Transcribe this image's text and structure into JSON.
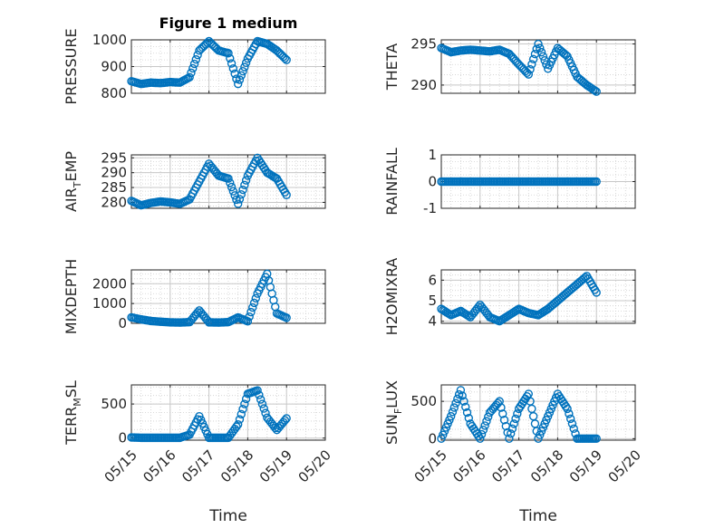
{
  "figure": {
    "title": "Figure 1 medium",
    "marker_color": "#0072BD"
  },
  "chart_data": [
    {
      "type": "scatter",
      "ylabel": "PRESSURE",
      "ylim": [
        800,
        1000
      ],
      "yticks": [
        "800",
        "900",
        "1000"
      ],
      "x": [
        "05/15",
        "05/15 06:00",
        "05/15 12:00",
        "05/15 18:00",
        "05/16",
        "05/16 06:00",
        "05/16 12:00",
        "05/16 18:00",
        "05/17",
        "05/17 06:00",
        "05/17 12:00",
        "05/17 18:00",
        "05/18",
        "05/18 06:00",
        "05/18 12:00",
        "05/18 18:00",
        "05/19"
      ],
      "y": [
        845,
        835,
        840,
        838,
        842,
        840,
        860,
        960,
        995,
        960,
        950,
        835,
        930,
        995,
        985,
        960,
        925
      ],
      "xlim": [
        "05/15",
        "05/20"
      ],
      "xticks": [
        "05/15",
        "05/16",
        "05/17",
        "05/18",
        "05/19",
        "05/20"
      ],
      "xlabel": "",
      "show_xticks": false,
      "title": "Figure 1 medium"
    },
    {
      "type": "scatter",
      "ylabel": "THETA",
      "ylim": [
        289,
        295.5
      ],
      "yticks": [
        "290",
        "295"
      ],
      "x": [
        "05/15",
        "05/15 06:00",
        "05/15 12:00",
        "05/15 18:00",
        "05/16",
        "05/16 06:00",
        "05/16 12:00",
        "05/16 18:00",
        "05/17",
        "05/17 06:00",
        "05/17 12:00",
        "05/17 18:00",
        "05/18",
        "05/18 06:00",
        "05/18 12:00",
        "05/18 18:00",
        "05/19"
      ],
      "y": [
        294.5,
        294.0,
        294.2,
        294.3,
        294.2,
        294.1,
        294.3,
        293.8,
        292.5,
        291.3,
        295.0,
        292.0,
        294.5,
        293.5,
        291.0,
        290.0,
        289.2
      ],
      "xlim": [
        "05/15",
        "05/20"
      ],
      "xticks": [
        "05/15",
        "05/16",
        "05/17",
        "05/18",
        "05/19",
        "05/20"
      ],
      "xlabel": "",
      "show_xticks": false
    },
    {
      "type": "scatter",
      "ylabel": "AIR_TEMP",
      "ylabel_main": "AIR",
      "ylabel_sub": "T",
      "ylabel_rest": "EMP",
      "ylim": [
        278,
        296
      ],
      "yticks": [
        "280",
        "285",
        "290",
        "295"
      ],
      "x": [
        "05/15",
        "05/15 06:00",
        "05/15 12:00",
        "05/15 18:00",
        "05/16",
        "05/16 06:00",
        "05/16 12:00",
        "05/16 18:00",
        "05/17",
        "05/17 06:00",
        "05/17 12:00",
        "05/17 18:00",
        "05/18",
        "05/18 06:00",
        "05/18 12:00",
        "05/18 18:00",
        "05/19"
      ],
      "y": [
        280.5,
        279.0,
        279.8,
        280.3,
        280.0,
        279.5,
        281.0,
        287.0,
        293.0,
        289.0,
        288.0,
        279.5,
        289.0,
        295.0,
        290.0,
        288.0,
        282.5
      ],
      "xlim": [
        "05/15",
        "05/20"
      ],
      "xticks": [
        "05/15",
        "05/16",
        "05/17",
        "05/18",
        "05/19",
        "05/20"
      ],
      "xlabel": "",
      "show_xticks": false
    },
    {
      "type": "scatter",
      "ylabel": "RAINFALL",
      "ylim": [
        -1,
        1
      ],
      "yticks": [
        "-1",
        "0",
        "1"
      ],
      "x": [
        "05/15",
        "05/15 06:00",
        "05/15 12:00",
        "05/15 18:00",
        "05/16",
        "05/16 06:00",
        "05/16 12:00",
        "05/16 18:00",
        "05/17",
        "05/17 06:00",
        "05/17 12:00",
        "05/17 18:00",
        "05/18",
        "05/18 06:00",
        "05/18 12:00",
        "05/18 18:00",
        "05/19"
      ],
      "y": [
        0,
        0,
        0,
        0,
        0,
        0,
        0,
        0,
        0,
        0,
        0,
        0,
        0,
        0,
        0,
        0,
        0
      ],
      "xlim": [
        "05/15",
        "05/20"
      ],
      "xticks": [
        "05/15",
        "05/16",
        "05/17",
        "05/18",
        "05/19",
        "05/20"
      ],
      "xlabel": "",
      "show_xticks": false
    },
    {
      "type": "scatter",
      "ylabel": "MIXDEPTH",
      "ylim": [
        0,
        2700
      ],
      "yticks": [
        "0",
        "1000",
        "2000"
      ],
      "x": [
        "05/15",
        "05/15 06:00",
        "05/15 12:00",
        "05/15 18:00",
        "05/16",
        "05/16 06:00",
        "05/16 12:00",
        "05/16 18:00",
        "05/17",
        "05/17 06:00",
        "05/17 12:00",
        "05/17 18:00",
        "05/18",
        "05/18 06:00",
        "05/18 12:00",
        "05/18 18:00",
        "05/19"
      ],
      "y": [
        300,
        200,
        120,
        80,
        50,
        40,
        60,
        650,
        50,
        40,
        60,
        300,
        100,
        1500,
        2500,
        500,
        280
      ],
      "xlim": [
        "05/15",
        "05/20"
      ],
      "xticks": [
        "05/15",
        "05/16",
        "05/17",
        "05/18",
        "05/19",
        "05/20"
      ],
      "xlabel": "",
      "show_xticks": false
    },
    {
      "type": "scatter",
      "ylabel": "H2OMIXRA",
      "ylim": [
        3.9,
        6.5
      ],
      "yticks": [
        "4",
        "5",
        "6"
      ],
      "x": [
        "05/15",
        "05/15 06:00",
        "05/15 12:00",
        "05/15 18:00",
        "05/16",
        "05/16 06:00",
        "05/16 12:00",
        "05/16 18:00",
        "05/17",
        "05/17 06:00",
        "05/17 12:00",
        "05/17 18:00",
        "05/18",
        "05/18 06:00",
        "05/18 12:00",
        "05/18 18:00",
        "05/19"
      ],
      "y": [
        4.6,
        4.3,
        4.5,
        4.2,
        4.8,
        4.2,
        4.0,
        4.3,
        4.6,
        4.4,
        4.3,
        4.6,
        5.0,
        5.4,
        5.8,
        6.2,
        5.4
      ],
      "xlim": [
        "05/15",
        "05/20"
      ],
      "xticks": [
        "05/15",
        "05/16",
        "05/17",
        "05/18",
        "05/19",
        "05/20"
      ],
      "xlabel": "",
      "show_xticks": false
    },
    {
      "type": "scatter",
      "ylabel": "TERR_MSL",
      "ylabel_main": "TERR",
      "ylabel_sub": "M",
      "ylabel_rest": "SL",
      "ylim": [
        -30,
        780
      ],
      "yticks": [
        "0",
        "500"
      ],
      "x": [
        "05/15",
        "05/15 06:00",
        "05/15 12:00",
        "05/15 18:00",
        "05/16",
        "05/16 06:00",
        "05/16 12:00",
        "05/16 18:00",
        "05/17",
        "05/17 06:00",
        "05/17 12:00",
        "05/17 18:00",
        "05/18",
        "05/18 06:00",
        "05/18 12:00",
        "05/18 18:00",
        "05/19"
      ],
      "y": [
        10,
        5,
        5,
        5,
        5,
        5,
        50,
        320,
        5,
        5,
        5,
        200,
        650,
        700,
        300,
        120,
        290
      ],
      "xlim": [
        "05/15",
        "05/20"
      ],
      "xticks": [
        "05/15",
        "05/16",
        "05/17",
        "05/18",
        "05/19",
        "05/20"
      ],
      "xlabel": "Time",
      "show_xticks": true
    },
    {
      "type": "scatter",
      "ylabel": "SUN_FLUX",
      "ylabel_main": "SUN",
      "ylabel_sub": "F",
      "ylabel_rest": "LUX",
      "ylim": [
        -20,
        720
      ],
      "yticks": [
        "0",
        "500"
      ],
      "x": [
        "05/15",
        "05/15 06:00",
        "05/15 12:00",
        "05/15 18:00",
        "05/16",
        "05/16 06:00",
        "05/16 12:00",
        "05/16 18:00",
        "05/17",
        "05/17 06:00",
        "05/17 12:00",
        "05/17 18:00",
        "05/18",
        "05/18 06:00",
        "05/18 12:00",
        "05/18 18:00",
        "05/19"
      ],
      "y": [
        0,
        300,
        650,
        200,
        0,
        350,
        500,
        0,
        400,
        600,
        0,
        300,
        600,
        400,
        0,
        0,
        0
      ],
      "xlim": [
        "05/15",
        "05/20"
      ],
      "xticks": [
        "05/15",
        "05/16",
        "05/17",
        "05/18",
        "05/19",
        "05/20"
      ],
      "xlabel": "Time",
      "show_xticks": true
    }
  ]
}
